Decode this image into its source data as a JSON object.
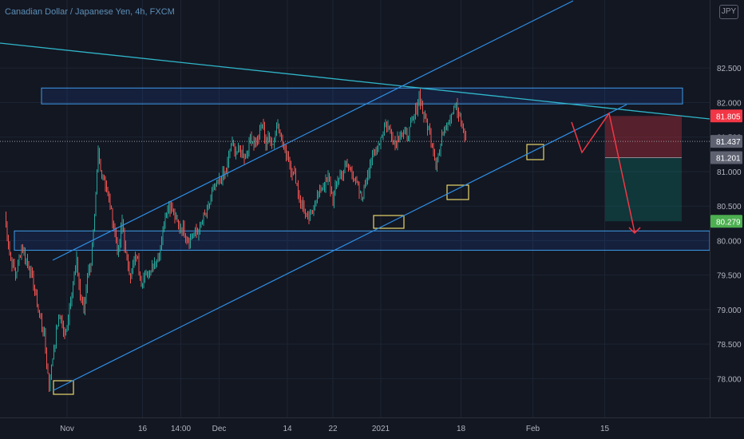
{
  "header": {
    "title": "Canadian Dollar / Japanese Yen, 4h, FXCM",
    "currency_badge": "JPY"
  },
  "colors": {
    "background": "#131722",
    "grid": "#1c2433",
    "up": "#26a69a",
    "down": "#ef5350",
    "channel": "#2f8fe6",
    "trendline": "#2fb6c9",
    "zone_border": "#3d9be9",
    "zone_fill": "rgba(41,98,255,0.12)",
    "pivot_box": "#e8d66c",
    "arrow": "#f23645",
    "axis_text": "#b2b5be",
    "price_label_sell": "#f23645",
    "price_label_buy": "#26a69a",
    "price_label_current": "#5d6170",
    "price_label_green": "#4caf50"
  },
  "chart_data": {
    "type": "candlestick",
    "symbol": "CADJPY",
    "timeframe": "4h",
    "source": "FXCM",
    "ylim": [
      77.45,
      83.3
    ],
    "y_ticks": [
      "82.500",
      "82.000",
      "81.500",
      "81.000",
      "80.500",
      "80.000",
      "79.500",
      "79.000",
      "78.500",
      "78.000"
    ],
    "y_tick_values": [
      82.5,
      82.0,
      81.5,
      81.0,
      80.5,
      80.0,
      79.5,
      79.0,
      78.5,
      78.0
    ],
    "x_ticks": [
      "Nov",
      "16",
      "14:00",
      "Dec",
      "14",
      "22",
      "2021",
      "18",
      "Feb",
      "15"
    ],
    "x_tick_bars": [
      52,
      115,
      147,
      179,
      236,
      274,
      314,
      381,
      441,
      501
    ],
    "price_labels": {
      "stop": "81.805",
      "current": "81.437",
      "entry": "81.201",
      "target": "80.279"
    },
    "price_label_values": {
      "stop": 81.805,
      "current": 81.437,
      "entry": 81.201,
      "target": 80.279
    },
    "anchors": [
      [
        0,
        80.4
      ],
      [
        4,
        79.8
      ],
      [
        9,
        79.5
      ],
      [
        14,
        79.9
      ],
      [
        21,
        79.6
      ],
      [
        28,
        79.0
      ],
      [
        33,
        78.6
      ],
      [
        37,
        77.9
      ],
      [
        40,
        78.3
      ],
      [
        44,
        78.8
      ],
      [
        47,
        78.9
      ],
      [
        50,
        78.6
      ],
      [
        53,
        78.9
      ],
      [
        56,
        79.3
      ],
      [
        60,
        79.7
      ],
      [
        63,
        79.2
      ],
      [
        66,
        79.0
      ],
      [
        69,
        79.5
      ],
      [
        72,
        79.7
      ],
      [
        75,
        80.3
      ],
      [
        78,
        81.3
      ],
      [
        80,
        81.0
      ],
      [
        83,
        80.9
      ],
      [
        87,
        80.6
      ],
      [
        91,
        80.2
      ],
      [
        95,
        79.8
      ],
      [
        98,
        80.3
      ],
      [
        101,
        79.8
      ],
      [
        105,
        79.5
      ],
      [
        110,
        79.8
      ],
      [
        114,
        79.4
      ],
      [
        118,
        79.5
      ],
      [
        122,
        79.6
      ],
      [
        125,
        79.7
      ],
      [
        129,
        79.8
      ],
      [
        133,
        80.3
      ],
      [
        137,
        80.5
      ],
      [
        141,
        80.4
      ],
      [
        145,
        80.2
      ],
      [
        149,
        80.2
      ],
      [
        153,
        80.0
      ],
      [
        157,
        80.1
      ],
      [
        161,
        80.1
      ],
      [
        165,
        80.3
      ],
      [
        169,
        80.4
      ],
      [
        173,
        80.7
      ],
      [
        177,
        80.8
      ],
      [
        181,
        80.9
      ],
      [
        185,
        81.0
      ],
      [
        189,
        81.4
      ],
      [
        193,
        81.3
      ],
      [
        197,
        81.3
      ],
      [
        201,
        81.2
      ],
      [
        205,
        81.5
      ],
      [
        209,
        81.4
      ],
      [
        212,
        81.5
      ],
      [
        215,
        81.7
      ],
      [
        218,
        81.4
      ],
      [
        221,
        81.5
      ],
      [
        224,
        81.4
      ],
      [
        228,
        81.7
      ],
      [
        231,
        81.5
      ],
      [
        234,
        81.3
      ],
      [
        237,
        81.2
      ],
      [
        240,
        81.0
      ],
      [
        243,
        80.9
      ],
      [
        246,
        80.6
      ],
      [
        249,
        80.5
      ],
      [
        252,
        80.3
      ],
      [
        255,
        80.35
      ],
      [
        258,
        80.5
      ],
      [
        262,
        80.7
      ],
      [
        266,
        80.8
      ],
      [
        270,
        80.9
      ],
      [
        274,
        80.6
      ],
      [
        278,
        80.9
      ],
      [
        282,
        81.0
      ],
      [
        286,
        81.1
      ],
      [
        290,
        81.0
      ],
      [
        294,
        80.8
      ],
      [
        298,
        80.6
      ],
      [
        302,
        80.9
      ],
      [
        306,
        81.2
      ],
      [
        310,
        81.3
      ],
      [
        314,
        81.5
      ],
      [
        318,
        81.7
      ],
      [
        322,
        81.6
      ],
      [
        326,
        81.4
      ],
      [
        330,
        81.6
      ],
      [
        334,
        81.5
      ],
      [
        338,
        81.6
      ],
      [
        342,
        81.8
      ],
      [
        346,
        82.1
      ],
      [
        350,
        81.8
      ],
      [
        354,
        81.6
      ],
      [
        357,
        81.4
      ],
      [
        360,
        81.1
      ],
      [
        363,
        81.3
      ],
      [
        366,
        81.6
      ],
      [
        369,
        81.7
      ],
      [
        372,
        81.8
      ],
      [
        376,
        82.0
      ],
      [
        379,
        81.8
      ],
      [
        382,
        81.65
      ],
      [
        385,
        81.45
      ]
    ]
  }
}
